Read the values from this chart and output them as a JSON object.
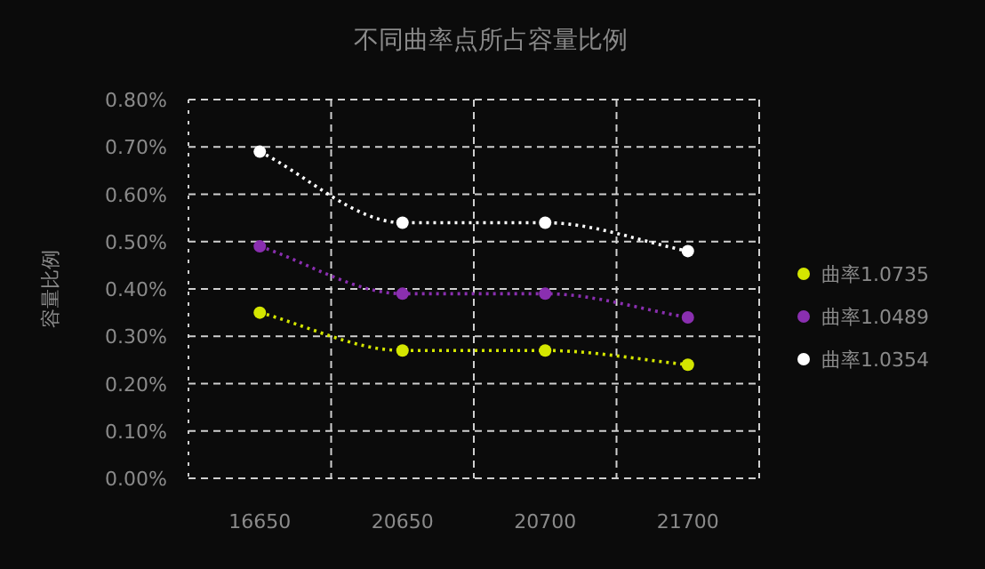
{
  "chart_data": {
    "type": "line",
    "title": "不同曲率点所占容量比例",
    "ylabel": "容量比例",
    "categories": [
      "16650",
      "20650",
      "20700",
      "21700"
    ],
    "series": [
      {
        "name": "曲率1.0735",
        "color": "#d4e600",
        "values": [
          0.35,
          0.27,
          0.27,
          0.24
        ]
      },
      {
        "name": "曲率1.0489",
        "color": "#8a2fb0",
        "values": [
          0.49,
          0.39,
          0.39,
          0.34
        ]
      },
      {
        "name": "曲率1.0354",
        "color": "#ffffff",
        "values": [
          0.69,
          0.54,
          0.54,
          0.48
        ]
      }
    ],
    "ylim": [
      0,
      0.8
    ],
    "yticks": [
      {
        "value": 0,
        "label": "0.00%"
      },
      {
        "value": 0.1,
        "label": "0.10%"
      },
      {
        "value": 0.2,
        "label": "0.20%"
      },
      {
        "value": 0.3,
        "label": "0.30%"
      },
      {
        "value": 0.4,
        "label": "0.40%"
      },
      {
        "value": 0.5,
        "label": "0.50%"
      },
      {
        "value": 0.6,
        "label": "0.60%"
      },
      {
        "value": 0.7,
        "label": "0.70%"
      },
      {
        "value": 0.8,
        "label": "0.80%"
      }
    ],
    "grid": true,
    "legend": "right",
    "marker": "circle",
    "line_style": "dotted"
  }
}
